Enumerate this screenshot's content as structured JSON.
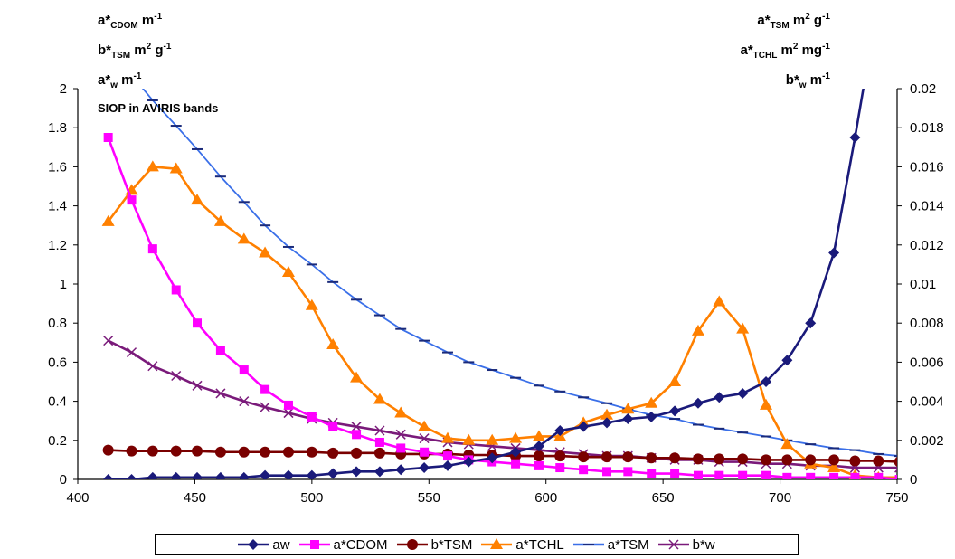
{
  "labels": {
    "left_1": {
      "a": "a*",
      "sub": "CDOM",
      "b": " m",
      "sup": "-1"
    },
    "left_2": {
      "a": "b*",
      "sub": "TSM",
      "b": " m",
      "sup": "2",
      "c": " g",
      "sup2": "-1"
    },
    "left_3": {
      "a": "a*",
      "sub": "w",
      "b": " m",
      "sup": "-1"
    },
    "right_1": {
      "a": "a*",
      "sub": "TSM",
      "b": " m",
      "sup": "2",
      "c": " g",
      "sup2": "-1"
    },
    "right_2": {
      "a": "a*",
      "sub": "TCHL",
      "b": " m",
      "sup": "2",
      "c": " mg",
      "sup2": "-1"
    },
    "right_3": {
      "a": "b*",
      "sub": "w",
      "b": " m",
      "sup": "-1"
    }
  },
  "chart_data": {
    "type": "line",
    "annotation": "SIOP in AVIRIS bands",
    "x_ticks": [
      400,
      450,
      500,
      550,
      600,
      650,
      700,
      750
    ],
    "y_left_ticks": [
      "0",
      "0.2",
      "0.4",
      "0.6",
      "0.8",
      "1",
      "1.2",
      "1.4",
      "1.6",
      "1.8",
      "2"
    ],
    "y_right_ticks": [
      "0",
      "0.002",
      "0.004",
      "0.006",
      "0.008",
      "0.01",
      "0.012",
      "0.014",
      "0.016",
      "0.018",
      "0.02"
    ],
    "xlim": [
      400,
      750
    ],
    "ylim_left": [
      0,
      2
    ],
    "ylim_right": [
      0,
      0.02
    ],
    "grid": false,
    "legend_position": "bottom",
    "series": [
      {
        "name": "aw",
        "axis": "left",
        "color": "#1a1a7a",
        "marker": "diamond",
        "x": [
          413,
          423,
          432,
          442,
          451,
          461,
          471,
          480,
          490,
          500,
          509,
          519,
          529,
          538,
          548,
          558,
          567,
          577,
          587,
          597,
          606,
          616,
          626,
          635,
          645,
          655,
          665,
          674,
          684,
          694,
          703,
          713,
          723,
          732
        ],
        "y": [
          0.0,
          0.0,
          0.01,
          0.01,
          0.01,
          0.01,
          0.01,
          0.02,
          0.02,
          0.02,
          0.03,
          0.04,
          0.04,
          0.05,
          0.06,
          0.07,
          0.09,
          0.11,
          0.14,
          0.17,
          0.25,
          0.27,
          0.29,
          0.31,
          0.32,
          0.35,
          0.39,
          0.42,
          0.44,
          0.5,
          0.61,
          0.8,
          1.16,
          1.75
        ]
      },
      {
        "name": "a*CDOM",
        "axis": "left",
        "color": "#ff00ff",
        "marker": "square",
        "x": [
          413,
          423,
          432,
          442,
          451,
          461,
          471,
          480,
          490,
          500,
          509,
          519,
          529,
          538,
          548,
          558,
          567,
          577,
          587,
          597,
          606,
          616,
          626,
          635,
          645,
          655,
          665,
          674,
          684,
          694,
          703,
          713,
          723,
          732,
          742,
          751
        ],
        "y": [
          1.75,
          1.43,
          1.18,
          0.97,
          0.8,
          0.66,
          0.56,
          0.46,
          0.38,
          0.32,
          0.27,
          0.23,
          0.19,
          0.16,
          0.14,
          0.12,
          0.1,
          0.09,
          0.08,
          0.07,
          0.06,
          0.05,
          0.04,
          0.04,
          0.03,
          0.03,
          0.02,
          0.02,
          0.02,
          0.02,
          0.01,
          0.01,
          0.01,
          0.01,
          0.01,
          0.0
        ]
      },
      {
        "name": "b*TSM",
        "axis": "left",
        "color": "#7a0000",
        "marker": "circle",
        "x": [
          413,
          423,
          432,
          442,
          451,
          461,
          471,
          480,
          490,
          500,
          509,
          519,
          529,
          538,
          548,
          558,
          567,
          577,
          587,
          597,
          606,
          616,
          626,
          635,
          645,
          655,
          665,
          674,
          684,
          694,
          703,
          713,
          723,
          732,
          742,
          751
        ],
        "y": [
          0.15,
          0.145,
          0.145,
          0.145,
          0.145,
          0.14,
          0.14,
          0.14,
          0.14,
          0.14,
          0.135,
          0.135,
          0.135,
          0.13,
          0.13,
          0.13,
          0.125,
          0.125,
          0.12,
          0.12,
          0.12,
          0.115,
          0.115,
          0.115,
          0.11,
          0.11,
          0.105,
          0.105,
          0.105,
          0.1,
          0.1,
          0.1,
          0.1,
          0.095,
          0.095,
          0.09
        ]
      },
      {
        "name": "a*TCHL",
        "axis": "right",
        "color": "#ff8000",
        "marker": "triangle",
        "x": [
          413,
          423,
          432,
          442,
          451,
          461,
          471,
          480,
          490,
          500,
          509,
          519,
          529,
          538,
          548,
          558,
          567,
          577,
          587,
          597,
          606,
          616,
          626,
          635,
          645,
          655,
          665,
          674,
          684,
          694,
          703,
          713,
          723,
          732,
          742,
          751
        ],
        "y": [
          0.0132,
          0.0148,
          0.016,
          0.0159,
          0.0143,
          0.0132,
          0.0123,
          0.0116,
          0.0106,
          0.0089,
          0.0069,
          0.0052,
          0.0041,
          0.0034,
          0.0027,
          0.0021,
          0.002,
          0.002,
          0.0021,
          0.0022,
          0.0022,
          0.0029,
          0.0033,
          0.0036,
          0.0039,
          0.005,
          0.0076,
          0.0091,
          0.0077,
          0.0038,
          0.0018,
          0.0008,
          0.0006,
          0.0002,
          0.0001,
          0.0001
        ]
      },
      {
        "name": "a*TSM",
        "axis": "right",
        "color": "#3a6fe8",
        "marker": "dash",
        "x": [
          413,
          423,
          432,
          442,
          451,
          461,
          471,
          480,
          490,
          500,
          509,
          519,
          529,
          538,
          548,
          558,
          567,
          577,
          587,
          597,
          606,
          616,
          626,
          635,
          645,
          655,
          665,
          674,
          684,
          694,
          703,
          713,
          723,
          732,
          742,
          751
        ],
        "y": [
          0.0222,
          0.0207,
          0.0194,
          0.0181,
          0.0169,
          0.0155,
          0.0142,
          0.013,
          0.0119,
          0.011,
          0.0101,
          0.0092,
          0.0084,
          0.0077,
          0.0071,
          0.0065,
          0.006,
          0.0056,
          0.0052,
          0.0048,
          0.0045,
          0.0042,
          0.0039,
          0.0036,
          0.0033,
          0.0031,
          0.0028,
          0.0026,
          0.0024,
          0.0022,
          0.002,
          0.0018,
          0.0016,
          0.0015,
          0.0013,
          0.0012
        ]
      },
      {
        "name": "b*w",
        "axis": "right",
        "color": "#7a1a7a",
        "marker": "x",
        "x": [
          413,
          423,
          432,
          442,
          451,
          461,
          471,
          480,
          490,
          500,
          509,
          519,
          529,
          538,
          548,
          558,
          567,
          577,
          587,
          597,
          606,
          616,
          626,
          635,
          645,
          655,
          665,
          674,
          684,
          694,
          703,
          713,
          723,
          732,
          742,
          751
        ],
        "y": [
          0.0071,
          0.0065,
          0.0058,
          0.0053,
          0.0048,
          0.0044,
          0.004,
          0.0037,
          0.0034,
          0.0031,
          0.0029,
          0.0027,
          0.0025,
          0.0023,
          0.0021,
          0.0019,
          0.0018,
          0.0017,
          0.0016,
          0.0015,
          0.0014,
          0.0013,
          0.0012,
          0.0012,
          0.0011,
          0.001,
          0.001,
          0.0009,
          0.0009,
          0.0008,
          0.0008,
          0.0007,
          0.0007,
          0.0006,
          0.0006,
          0.0006
        ]
      }
    ]
  }
}
